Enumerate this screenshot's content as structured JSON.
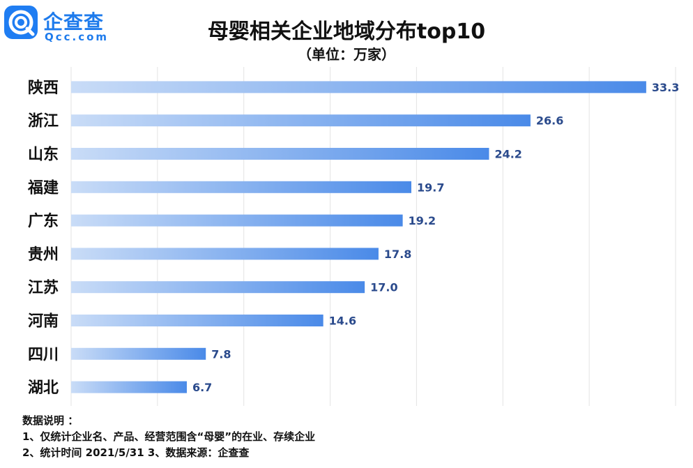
{
  "brand": {
    "name": "企查查",
    "domain": "Qcc.com",
    "color": "#1e7bec"
  },
  "chart_data": {
    "type": "bar",
    "orientation": "horizontal",
    "title": "母婴相关企业地域分布top10",
    "subtitle": "（单位：万家）",
    "categories": [
      "陕西",
      "浙江",
      "山东",
      "福建",
      "广东",
      "贵州",
      "江苏",
      "河南",
      "四川",
      "湖北"
    ],
    "values": [
      33.3,
      26.6,
      24.2,
      19.7,
      19.2,
      17.8,
      17.0,
      14.6,
      7.8,
      6.7
    ],
    "value_labels": [
      "33.3",
      "26.6",
      "24.2",
      "19.7",
      "19.2",
      "17.8",
      "17.0",
      "14.6",
      "7.8",
      "6.7"
    ],
    "xlim": [
      0,
      35
    ],
    "grid": true,
    "bar_gradient": [
      "#c9dcf7",
      "#4a8ae8"
    ],
    "label_color": "#2a4a8c"
  },
  "notes": {
    "heading": "数据说明 ：",
    "line1": "1、仅统计企业名、产品、经营范围含“母婴”的在业、存续企业",
    "line2": "2、统计时间 2021/5/31   3、数据来源：企查查"
  }
}
